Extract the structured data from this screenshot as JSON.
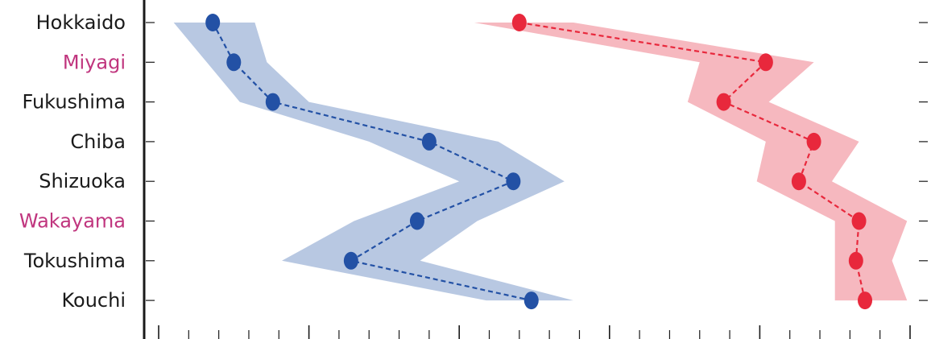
{
  "chart_data": {
    "type": "line",
    "title": "",
    "xlabel": "",
    "ylabel": "",
    "xlim": [
      0,
      25
    ],
    "grid": false,
    "categories": [
      "Hokkaido",
      "Miyagi",
      "Fukushima",
      "Chiba",
      "Shizuoka",
      "Wakayama",
      "Tokushima",
      "Kouchi"
    ],
    "category_colors": [
      "#1a1a1a",
      "#c0357e",
      "#1a1a1a",
      "#1a1a1a",
      "#1a1a1a",
      "#c0357e",
      "#1a1a1a",
      "#1a1a1a"
    ],
    "series": [
      {
        "color": "#2351a5",
        "band_color": "#b8c8e2",
        "values": [
          1.8,
          2.5,
          3.8,
          9.0,
          11.8,
          8.6,
          6.4,
          12.4
        ],
        "lower": [
          0.5,
          1.6,
          2.7,
          7.0,
          10.0,
          6.5,
          4.1,
          10.9
        ],
        "upper": [
          3.2,
          3.6,
          5.0,
          11.3,
          13.5,
          10.6,
          8.7,
          13.8
        ]
      },
      {
        "color": "#e8283c",
        "band_color": "#f6b8bf",
        "values": [
          12.0,
          20.2,
          18.8,
          21.8,
          21.3,
          23.3,
          23.2,
          23.5
        ],
        "lower": [
          10.5,
          18.0,
          17.6,
          20.2,
          19.9,
          22.5,
          22.5,
          22.5
        ],
        "upper": [
          13.8,
          21.8,
          20.3,
          23.3,
          22.4,
          24.9,
          24.4,
          24.9
        ]
      }
    ]
  }
}
